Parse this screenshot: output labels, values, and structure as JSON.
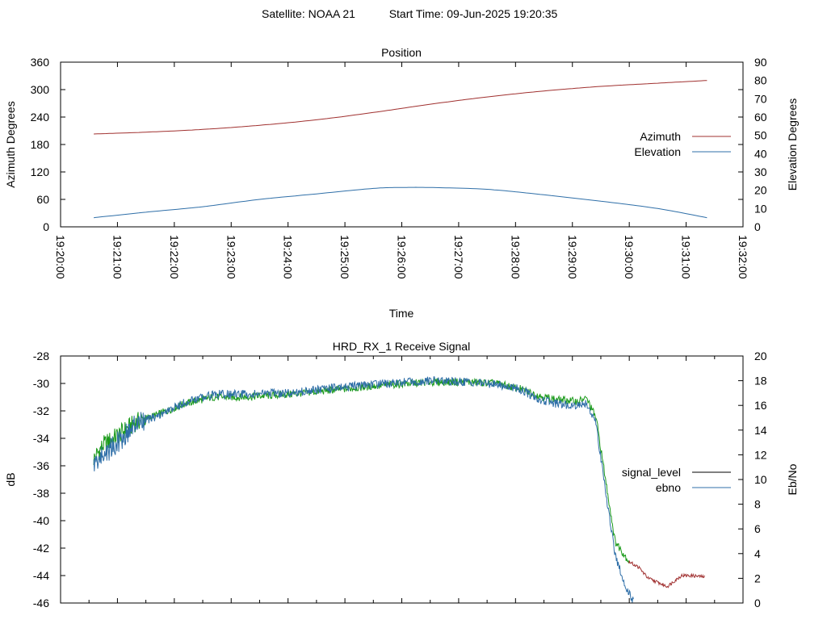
{
  "header": {
    "satellite_label": "Satellite: NOAA 21",
    "start_time_label": "Start Time: 09-Jun-2025 19:20:35"
  },
  "colors": {
    "azimuth": "#a0302f",
    "elevation": "#2f6fa8",
    "signal_level": "#1a9a1a",
    "signal_level_tail": "#a03030",
    "ebno": "#2f6fa8",
    "legend_signal_level": "#000000",
    "axis": "#000000"
  },
  "chart_data": [
    {
      "type": "line",
      "title": "Position",
      "xlabel": "Time",
      "ylabel": "Azimuth Degrees",
      "y2label": "Elevation Degrees",
      "x_ticks": [
        "19:20:00",
        "19:21:00",
        "19:22:00",
        "19:23:00",
        "19:24:00",
        "19:25:00",
        "19:26:00",
        "19:27:00",
        "19:28:00",
        "19:29:00",
        "19:30:00",
        "19:31:00",
        "19:32:00"
      ],
      "xlim": [
        "19:20:00",
        "19:32:00"
      ],
      "ylim": [
        0,
        360
      ],
      "y_ticks": [
        0,
        60,
        120,
        180,
        240,
        300,
        360
      ],
      "y2lim": [
        0,
        90
      ],
      "y2_ticks": [
        0,
        10,
        20,
        30,
        40,
        50,
        60,
        70,
        80,
        90
      ],
      "legend_position": "right",
      "series": [
        {
          "name": "Azimuth",
          "axis": "y",
          "x": [
            "19:20:35",
            "19:21:30",
            "19:22:30",
            "19:23:30",
            "19:24:30",
            "19:25:30",
            "19:26:30",
            "19:27:30",
            "19:28:30",
            "19:29:30",
            "19:30:30",
            "19:31:22"
          ],
          "values": [
            203,
            207,
            213,
            222,
            234,
            250,
            268,
            284,
            297,
            307,
            314,
            320
          ]
        },
        {
          "name": "Elevation",
          "axis": "y2",
          "x": [
            "19:20:35",
            "19:21:30",
            "19:22:30",
            "19:23:30",
            "19:24:30",
            "19:25:30",
            "19:26:00",
            "19:26:30",
            "19:27:30",
            "19:28:30",
            "19:29:30",
            "19:30:30",
            "19:31:22"
          ],
          "values": [
            5,
            8,
            11,
            15,
            18,
            21,
            21.5,
            21.5,
            20.5,
            17.5,
            14,
            10,
            5
          ]
        }
      ]
    },
    {
      "type": "line",
      "title": "HRD_RX_1 Receive Signal",
      "ylabel": "dB",
      "y2label": "Eb/No",
      "ylim": [
        -46,
        -28
      ],
      "y_ticks": [
        -46,
        -44,
        -42,
        -40,
        -38,
        -36,
        -34,
        -32,
        -30,
        -28
      ],
      "y2lim": [
        0,
        20
      ],
      "y2_ticks": [
        0,
        2,
        4,
        6,
        8,
        10,
        12,
        14,
        16,
        18,
        20
      ],
      "legend_position": "right",
      "series": [
        {
          "name": "signal_level",
          "axis": "y",
          "x": [
            "19:20:35",
            "19:20:45",
            "19:21:00",
            "19:21:20",
            "19:21:45",
            "19:22:10",
            "19:22:40",
            "19:23:10",
            "19:24:00",
            "19:25:00",
            "19:25:45",
            "19:26:30",
            "19:27:10",
            "19:27:40",
            "19:28:05",
            "19:28:25",
            "19:28:45",
            "19:29:05",
            "19:29:15",
            "19:29:25",
            "19:29:35",
            "19:29:45",
            "19:30:00",
            "19:30:10",
            "19:30:20",
            "19:30:40",
            "19:30:55",
            "19:31:05",
            "19:31:20"
          ],
          "values": [
            -35.5,
            -34.5,
            -33.8,
            -32.8,
            -32.2,
            -31.5,
            -31.0,
            -31.0,
            -30.8,
            -30.4,
            -30.1,
            -29.9,
            -29.9,
            -30.0,
            -30.4,
            -30.9,
            -31.2,
            -31.3,
            -31.1,
            -32.5,
            -37.0,
            -41.5,
            -43.0,
            -43.4,
            -44.2,
            -44.8,
            -44.0,
            -44.0,
            -44.1
          ]
        },
        {
          "name": "ebno",
          "axis": "y2",
          "x": [
            "19:20:35",
            "19:20:45",
            "19:21:00",
            "19:21:20",
            "19:21:45",
            "19:22:10",
            "19:22:40",
            "19:23:10",
            "19:24:00",
            "19:25:00",
            "19:25:45",
            "19:26:30",
            "19:27:10",
            "19:27:40",
            "19:28:05",
            "19:28:25",
            "19:28:45",
            "19:29:05",
            "19:29:15",
            "19:29:25",
            "19:29:35",
            "19:29:45",
            "19:29:55",
            "19:30:05"
          ],
          "values": [
            11.2,
            12.0,
            13.0,
            14.5,
            15.2,
            16.2,
            16.9,
            16.9,
            17.0,
            17.5,
            17.8,
            18.0,
            17.9,
            17.7,
            17.3,
            16.5,
            16.1,
            16.0,
            16.2,
            14.5,
            9.0,
            4.0,
            1.5,
            0.0
          ]
        }
      ]
    }
  ]
}
